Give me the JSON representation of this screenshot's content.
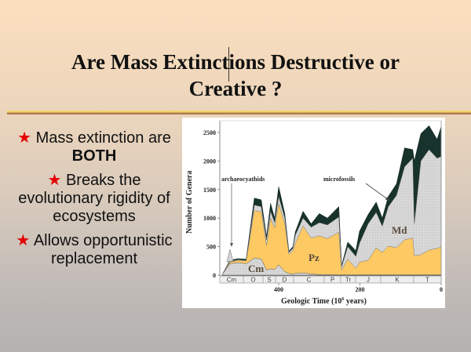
{
  "slide": {
    "title_line1": "Are Mass Extinctions Destructive or",
    "title_line2": "Creative ?",
    "bullets": [
      {
        "icon": "star-icon",
        "text_before": "Mass extinction are ",
        "text_bold": "BOTH",
        "text_after": ""
      },
      {
        "icon": "star-icon",
        "text_before": "Breaks the evolutionary rigidity of ecosystems",
        "text_bold": "",
        "text_after": ""
      },
      {
        "icon": "star-icon",
        "text_before": "Allows opportunistic replacement",
        "text_bold": "",
        "text_after": ""
      }
    ],
    "colors": {
      "star": "#e30000",
      "divider_gold": "#f6dd71",
      "divider_brown": "#a67249",
      "pz_fill": "#fdc963",
      "md_fill": "#dcdcdc",
      "microfossil_fill": "#17332b"
    }
  },
  "chart_data": {
    "type": "area",
    "title": "",
    "xlabel": "Geologic Time (10^6 years)",
    "xlabel_prefix": "Geologic Time (10",
    "xlabel_sup": "6",
    "xlabel_suffix": " years)",
    "ylabel": "Number of Genera",
    "xlim": [
      545,
      0
    ],
    "ylim": [
      0,
      2600
    ],
    "x_ticks": [
      400,
      200,
      0
    ],
    "y_ticks": [
      0,
      500,
      1000,
      1500,
      2000,
      2500
    ],
    "grid": false,
    "legend": "none (regions labeled inline)",
    "region_labels": [
      "Cm",
      "Pz",
      "Md"
    ],
    "annotations": [
      "archaeocyathids",
      "microfossils"
    ],
    "periods": [
      "Cm",
      "O",
      "S",
      "D",
      "C",
      "P",
      "Tr",
      "J",
      "K",
      "T"
    ],
    "x": [
      540,
      520,
      500,
      480,
      460,
      443,
      430,
      420,
      410,
      400,
      385,
      375,
      365,
      359,
      340,
      320,
      300,
      280,
      252,
      245,
      230,
      210,
      201,
      180,
      160,
      145,
      130,
      110,
      90,
      70,
      66,
      50,
      30,
      10,
      0
    ],
    "series": [
      {
        "name": "Cm (Cambrian fauna)",
        "values": [
          0,
          200,
          220,
          200,
          300,
          280,
          90,
          110,
          100,
          180,
          60,
          30,
          20,
          30,
          40,
          20,
          10,
          10,
          5,
          5,
          5,
          5,
          5,
          5,
          5,
          5,
          5,
          5,
          5,
          5,
          5,
          5,
          5,
          5,
          5
        ]
      },
      {
        "name": "Pz (Paleozoic fauna, cumulative)",
        "values": [
          0,
          230,
          260,
          250,
          1130,
          1110,
          520,
          1000,
          830,
          1250,
          900,
          370,
          430,
          560,
          860,
          650,
          690,
          640,
          750,
          90,
          280,
          120,
          230,
          260,
          480,
          400,
          510,
          480,
          620,
          650,
          340,
          360,
          440,
          470,
          500
        ]
      },
      {
        "name": "Md (Modern fauna, cumulative)",
        "values": [
          0,
          240,
          270,
          260,
          1230,
          1200,
          620,
          1120,
          920,
          1380,
          1000,
          400,
          470,
          700,
          1000,
          840,
          920,
          880,
          1020,
          150,
          500,
          330,
          560,
          900,
          1100,
          860,
          1200,
          1400,
          1900,
          2050,
          900,
          2000,
          2200,
          2050,
          2080
        ]
      },
      {
        "name": "Microfossils (cumulative total)",
        "values": [
          0,
          260,
          290,
          280,
          1350,
          1320,
          680,
          1260,
          1000,
          1550,
          1080,
          420,
          500,
          760,
          1120,
          900,
          1080,
          1000,
          1200,
          170,
          580,
          430,
          770,
          1060,
          1280,
          1000,
          1380,
          1600,
          2230,
          2200,
          2000,
          2480,
          2620,
          2380,
          2600
        ]
      },
      {
        "name": "archaeocyathids (spike)",
        "values": [
          0,
          450,
          0,
          0,
          0,
          0,
          0,
          0,
          0,
          0,
          0,
          0,
          0,
          0,
          0,
          0,
          0,
          0,
          0,
          0,
          0,
          0,
          0,
          0,
          0,
          0,
          0,
          0,
          0,
          0,
          0,
          0,
          0,
          0,
          0
        ]
      }
    ]
  }
}
